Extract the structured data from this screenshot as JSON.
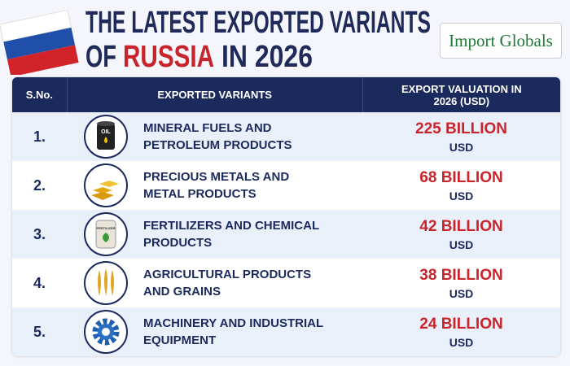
{
  "header": {
    "title_line1": "THE LATEST EXPORTED VARIANTS",
    "title_line2_start": "OF",
    "title_line2_highlight": "RUSSIA",
    "title_line2_end": "IN 2026",
    "logo": "Import Globals"
  },
  "table": {
    "columns": [
      "S.No.",
      "EXPORTED VARIANTS",
      "EXPORT VALUATION IN 2026 (USD)"
    ],
    "rows": [
      {
        "sno": "1.",
        "variant": "MINERAL FUELS AND PETROLEUM PRODUCTS",
        "value": "225 BILLION",
        "unit": "USD",
        "icon_label": "OIL"
      },
      {
        "sno": "2.",
        "variant": "PRECIOUS METALS AND METAL PRODUCTS",
        "value": "68 BILLION",
        "unit": "USD"
      },
      {
        "sno": "3.",
        "variant": "FERTILIZERS AND CHEMICAL PRODUCTS",
        "value": "42 BILLION",
        "unit": "USD",
        "icon_label": "FERTILIZER"
      },
      {
        "sno": "4.",
        "variant": "AGRICULTURAL PRODUCTS AND GRAINS",
        "value": "38 BILLION",
        "unit": "USD"
      },
      {
        "sno": "5.",
        "variant": "MACHINERY AND INDUSTRIAL EQUIPMENT",
        "value": "24 BILLION",
        "unit": "USD"
      }
    ]
  }
}
